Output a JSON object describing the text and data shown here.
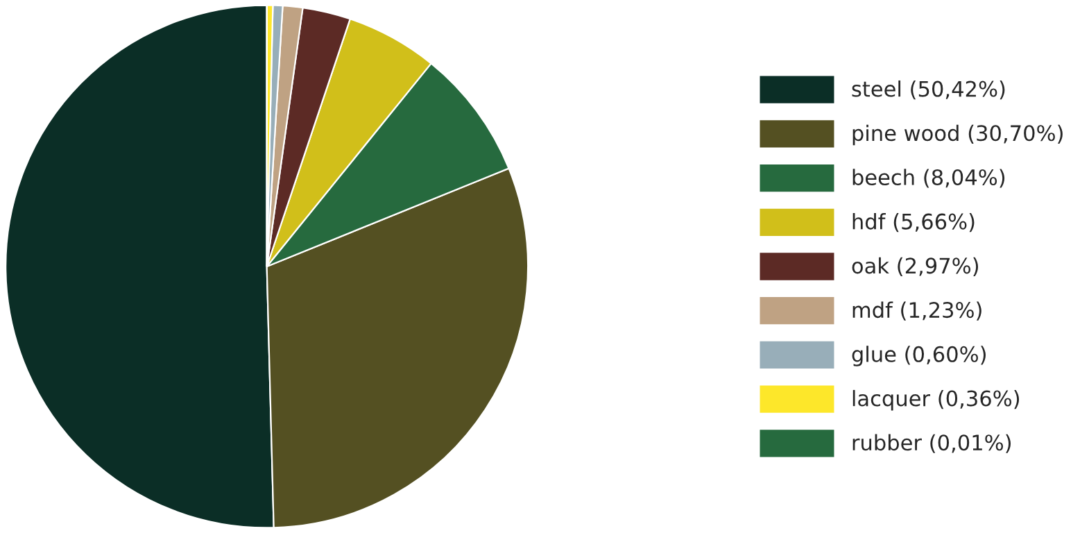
{
  "chart_data": {
    "type": "pie",
    "categories": [
      "steel (50,42%)",
      "pine wood (30,70%)",
      "beech (8,04%)",
      "hdf (5,66%)",
      "oak (2,97%)",
      "mdf (1,23%)",
      "glue (0,60%)",
      "lacquer (0,36%)",
      "rubber (0,01%)"
    ],
    "values": [
      50.42,
      30.7,
      8.04,
      5.66,
      2.97,
      1.23,
      0.6,
      0.36,
      0.01
    ],
    "colors": [
      "#0b2e26",
      "#545022",
      "#266a3e",
      "#d1bf1a",
      "#5c2a25",
      "#bfa283",
      "#98aeb9",
      "#fde72a",
      "#266a3e"
    ],
    "legend": "right"
  }
}
